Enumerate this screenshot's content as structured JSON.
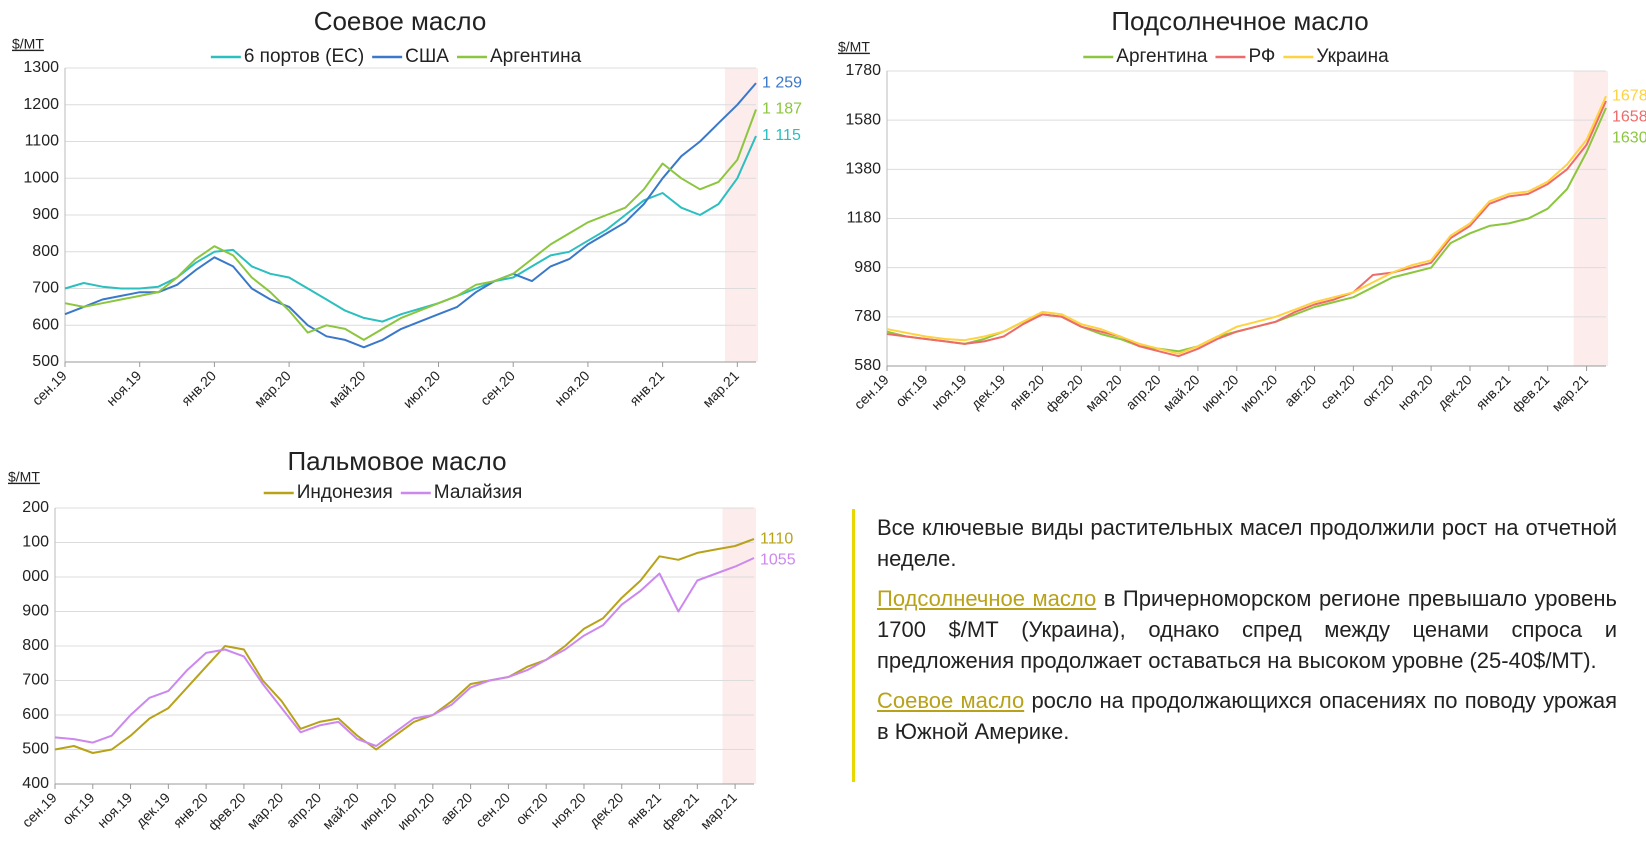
{
  "chart_data": [
    {
      "type": "line",
      "title": "Соевое масло",
      "y_label": "$/МТ",
      "categories": [
        "сен.19",
        null,
        null,
        null,
        "ноя.19",
        null,
        null,
        null,
        "янв.20",
        null,
        null,
        null,
        "мар.20",
        null,
        null,
        null,
        "май.20",
        null,
        null,
        null,
        "июл.20",
        null,
        null,
        null,
        "сен.20",
        null,
        null,
        null,
        "ноя.20",
        null,
        null,
        null,
        "янв.21",
        null,
        null,
        null,
        "мар.21",
        null
      ],
      "ylim": [
        500,
        1300
      ],
      "yticks": [
        500,
        600,
        700,
        800,
        900,
        1000,
        1100,
        1200,
        1300
      ],
      "grid": true,
      "series": [
        {
          "name": "6 портов (ЕС)",
          "color": "#2bbfbf",
          "values": [
            700,
            715,
            705,
            700,
            700,
            705,
            730,
            770,
            800,
            805,
            760,
            740,
            730,
            700,
            670,
            640,
            620,
            610,
            630,
            645,
            660,
            680,
            700,
            720,
            730,
            760,
            790,
            800,
            830,
            860,
            900,
            940,
            960,
            920,
            900,
            930,
            1000,
            1115
          ],
          "value_labels": [
            null,
            null,
            null,
            null,
            null,
            null,
            null,
            null,
            null,
            null,
            null,
            null,
            null,
            null,
            null,
            null,
            null,
            null,
            null,
            null,
            null,
            null,
            null,
            null,
            null,
            null,
            null,
            null,
            null,
            null,
            null,
            null,
            null,
            null,
            null,
            null,
            null,
            "1 115"
          ]
        },
        {
          "name": "США",
          "color": "#3a78c9",
          "values": [
            630,
            650,
            670,
            680,
            690,
            690,
            710,
            750,
            785,
            760,
            700,
            670,
            650,
            600,
            570,
            560,
            540,
            560,
            590,
            610,
            630,
            650,
            690,
            720,
            740,
            720,
            760,
            780,
            820,
            850,
            880,
            930,
            1000,
            1060,
            1100,
            1150,
            1200,
            1259
          ],
          "value_labels": [
            null,
            null,
            null,
            null,
            null,
            null,
            null,
            null,
            null,
            null,
            null,
            null,
            null,
            null,
            null,
            null,
            null,
            null,
            null,
            null,
            null,
            null,
            null,
            null,
            null,
            null,
            null,
            null,
            null,
            null,
            null,
            null,
            null,
            null,
            null,
            null,
            null,
            "1 259"
          ]
        },
        {
          "name": "Аргентина",
          "color": "#8cc63f",
          "values": [
            660,
            650,
            660,
            670,
            680,
            690,
            730,
            780,
            815,
            790,
            730,
            690,
            640,
            580,
            600,
            590,
            560,
            590,
            620,
            640,
            660,
            680,
            710,
            720,
            740,
            780,
            820,
            850,
            880,
            900,
            920,
            970,
            1040,
            1000,
            970,
            990,
            1050,
            1187
          ],
          "value_labels": [
            null,
            null,
            null,
            null,
            null,
            null,
            null,
            null,
            null,
            null,
            null,
            null,
            null,
            null,
            null,
            null,
            null,
            null,
            null,
            null,
            null,
            null,
            null,
            null,
            null,
            null,
            null,
            null,
            null,
            null,
            null,
            null,
            null,
            null,
            null,
            null,
            null,
            "1 187"
          ]
        }
      ]
    },
    {
      "type": "line",
      "title": "Подсолнечное масло",
      "y_label": "$/МТ",
      "categories": [
        "сен.19",
        null,
        "окт.19",
        null,
        "ноя.19",
        null,
        "дек.19",
        null,
        "янв.20",
        null,
        "фев.20",
        null,
        "мар.20",
        null,
        "апр.20",
        null,
        "май.20",
        null,
        "июн.20",
        null,
        "июл.20",
        null,
        "авг.20",
        null,
        "сен.20",
        null,
        "окт.20",
        null,
        "ноя.20",
        null,
        "дек.20",
        null,
        "янв.21",
        null,
        "фев.21",
        null,
        "мар.21",
        null
      ],
      "ylim": [
        580,
        1780
      ],
      "yticks": [
        580,
        780,
        980,
        1180,
        1380,
        1580,
        1780
      ],
      "grid": true,
      "series": [
        {
          "name": "Аргентина",
          "color": "#8cc63f",
          "values": [
            720,
            700,
            690,
            680,
            670,
            690,
            720,
            760,
            790,
            780,
            740,
            710,
            690,
            660,
            650,
            640,
            660,
            700,
            720,
            740,
            760,
            790,
            820,
            840,
            860,
            900,
            940,
            960,
            980,
            1080,
            1120,
            1150,
            1160,
            1180,
            1220,
            1300,
            1450,
            1630
          ]
        },
        {
          "name": "РФ",
          "color": "#ee6b6b",
          "values": [
            710,
            700,
            690,
            680,
            670,
            680,
            700,
            750,
            790,
            780,
            740,
            720,
            700,
            660,
            640,
            620,
            650,
            690,
            720,
            740,
            760,
            800,
            830,
            850,
            880,
            950,
            960,
            980,
            1000,
            1100,
            1150,
            1240,
            1270,
            1280,
            1320,
            1380,
            1480,
            1658
          ]
        },
        {
          "name": "Украина",
          "color": "#ffd23f",
          "values": [
            730,
            715,
            700,
            690,
            685,
            700,
            720,
            760,
            800,
            790,
            750,
            730,
            700,
            670,
            650,
            630,
            660,
            700,
            740,
            760,
            780,
            810,
            840,
            860,
            880,
            920,
            960,
            990,
            1010,
            1110,
            1160,
            1250,
            1280,
            1290,
            1330,
            1400,
            1500,
            1678
          ]
        }
      ]
    },
    {
      "type": "line",
      "title": "Пальмовое масло",
      "y_label": "$/МТ",
      "categories": [
        "сен.19",
        null,
        "окт.19",
        null,
        "ноя.19",
        null,
        "дек.19",
        null,
        "янв.20",
        null,
        "фев.20",
        null,
        "мар.20",
        null,
        "апр.20",
        null,
        "май.20",
        null,
        "июн.20",
        null,
        "июл.20",
        null,
        "авг.20",
        null,
        "сен.20",
        null,
        "окт.20",
        null,
        "ноя.20",
        null,
        "дек.20",
        null,
        "янв.21",
        null,
        "фев.21",
        null,
        "мар.21",
        null
      ],
      "ylim": [
        400,
        1200
      ],
      "yticks": [
        400,
        500,
        600,
        700,
        800,
        900,
        {
          "value": 1000,
          "label": "000"
        },
        {
          "value": 1100,
          "label": "100"
        },
        {
          "value": 1200,
          "label": "200"
        }
      ],
      "grid": true,
      "series": [
        {
          "name": "Индонезия",
          "color": "#b8a21a",
          "values": [
            500,
            510,
            490,
            500,
            540,
            590,
            620,
            680,
            740,
            800,
            790,
            700,
            640,
            560,
            580,
            590,
            540,
            500,
            540,
            580,
            600,
            640,
            690,
            700,
            710,
            740,
            760,
            800,
            850,
            880,
            940,
            990,
            1060,
            1050,
            1070,
            1080,
            1090,
            1110
          ]
        },
        {
          "name": "Малайзия",
          "color": "#cc88ee",
          "values": [
            535,
            530,
            520,
            540,
            600,
            650,
            670,
            730,
            780,
            790,
            770,
            690,
            620,
            550,
            570,
            580,
            530,
            510,
            550,
            590,
            600,
            630,
            680,
            700,
            710,
            730,
            760,
            790,
            830,
            860,
            920,
            960,
            1010,
            900,
            990,
            1010,
            1030,
            1055
          ]
        }
      ]
    }
  ],
  "text_block": {
    "paragraphs": [
      {
        "text": "Все ключевые виды растительных масел продолжили рост на отчетной неделе."
      },
      {
        "term": "Подсолнечное масло",
        "text": "в Причерноморском регионе превышало уровень 1700 $/МТ (Украина), однако спред между ценами спроса и предложения продолжает оставаться на высоком уровне (25-40$/МТ)."
      },
      {
        "term": "Соевое масло",
        "text": "росло на продолжающихся опасениях по поводу урожая в Южной Америке."
      }
    ]
  }
}
